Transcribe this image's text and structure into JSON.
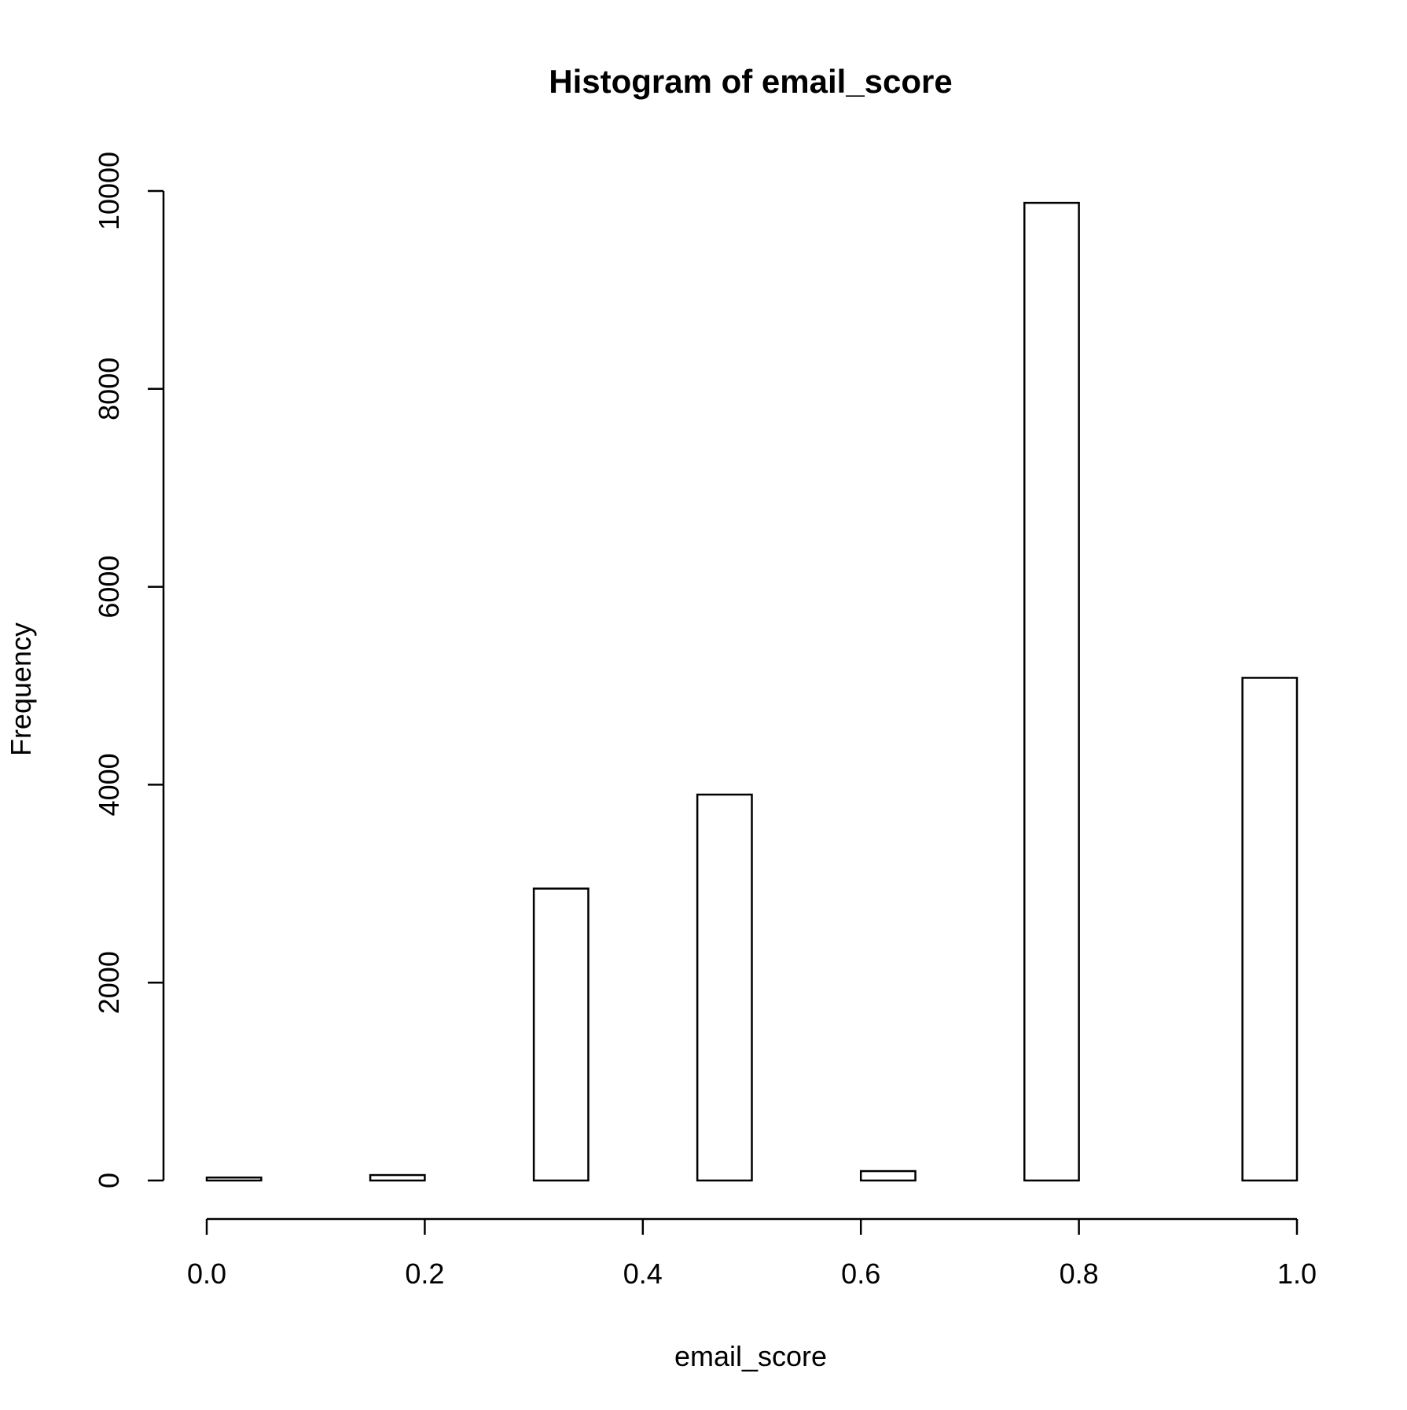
{
  "chart_data": {
    "type": "bar",
    "title": "Histogram of email_score",
    "xlabel": "email_score",
    "ylabel": "Frequency",
    "xlim": [
      0.0,
      1.0
    ],
    "ylim": [
      0,
      10000
    ],
    "x_ticks": [
      "0.0",
      "0.2",
      "0.4",
      "0.6",
      "0.8",
      "1.0"
    ],
    "y_ticks": [
      "0",
      "2000",
      "4000",
      "6000",
      "8000",
      "10000"
    ],
    "grid": false,
    "legend": "none",
    "bins": [
      {
        "x0": 0.0,
        "x1": 0.05,
        "count": 30
      },
      {
        "x0": 0.05,
        "x1": 0.1,
        "count": 0
      },
      {
        "x0": 0.1,
        "x1": 0.15,
        "count": 0
      },
      {
        "x0": 0.15,
        "x1": 0.2,
        "count": 55
      },
      {
        "x0": 0.2,
        "x1": 0.25,
        "count": 0
      },
      {
        "x0": 0.25,
        "x1": 0.3,
        "count": 0
      },
      {
        "x0": 0.3,
        "x1": 0.35,
        "count": 2950
      },
      {
        "x0": 0.35,
        "x1": 0.4,
        "count": 0
      },
      {
        "x0": 0.4,
        "x1": 0.45,
        "count": 0
      },
      {
        "x0": 0.45,
        "x1": 0.5,
        "count": 3900
      },
      {
        "x0": 0.5,
        "x1": 0.55,
        "count": 0
      },
      {
        "x0": 0.55,
        "x1": 0.6,
        "count": 0
      },
      {
        "x0": 0.6,
        "x1": 0.65,
        "count": 95
      },
      {
        "x0": 0.65,
        "x1": 0.7,
        "count": 0
      },
      {
        "x0": 0.7,
        "x1": 0.75,
        "count": 0
      },
      {
        "x0": 0.75,
        "x1": 0.8,
        "count": 9880
      },
      {
        "x0": 0.8,
        "x1": 0.85,
        "count": 0
      },
      {
        "x0": 0.85,
        "x1": 0.9,
        "count": 0
      },
      {
        "x0": 0.9,
        "x1": 0.95,
        "count": 0
      },
      {
        "x0": 0.95,
        "x1": 1.0,
        "count": 5080
      }
    ]
  }
}
